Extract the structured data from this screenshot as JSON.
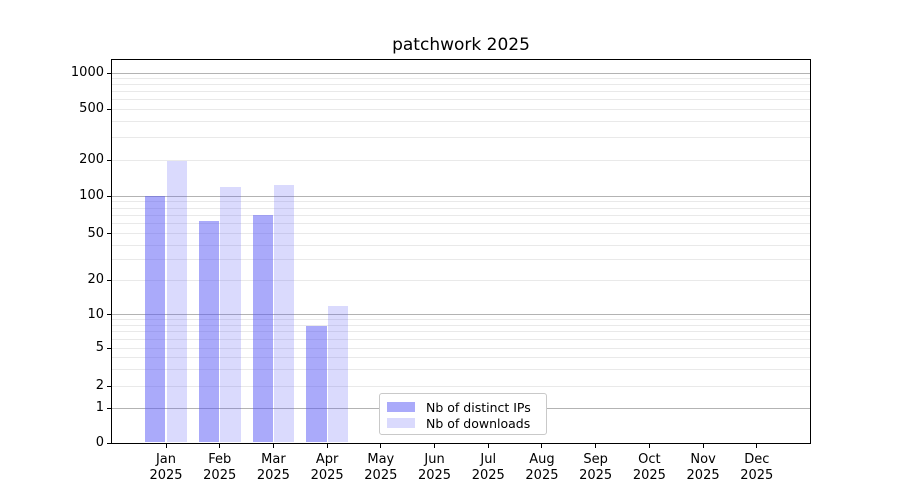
{
  "title": "patchwork 2025",
  "chart_data": {
    "type": "bar",
    "title": "patchwork 2025",
    "categories": [
      "Jan 2025",
      "Feb 2025",
      "Mar 2025",
      "Apr 2025",
      "May 2025",
      "Jun 2025",
      "Jul 2025",
      "Aug 2025",
      "Sep 2025",
      "Oct 2025",
      "Nov 2025",
      "Dec 2025"
    ],
    "series": [
      {
        "name": "Nb of distinct IPs",
        "color": "#5555f5",
        "fill_alpha": 0.5,
        "values": [
          100,
          63,
          71,
          8,
          null,
          null,
          null,
          null,
          null,
          null,
          null,
          null
        ]
      },
      {
        "name": "Nb of downloads",
        "color": "#5555f5",
        "fill_alpha": 0.22,
        "values": [
          195,
          120,
          124,
          12,
          null,
          null,
          null,
          null,
          null,
          null,
          null,
          null
        ]
      }
    ],
    "xlabel": "",
    "ylabel": "",
    "yscale": "log-like (0 baseline, ticks 1-2-5 pattern)",
    "yticks": [
      0,
      1,
      2,
      5,
      10,
      20,
      50,
      100,
      200,
      500,
      1000
    ],
    "ylim": [
      0,
      1300
    ],
    "grid": "horizontal: faint minor lines, gray major lines at 1, 10, 100, 1000",
    "legend": {
      "position": "lower center",
      "labels": [
        "Nb of distinct IPs",
        "Nb of downloads"
      ]
    },
    "colors": {
      "axis": "#000000",
      "grid_major": "#b3b3b3",
      "grid_minor": "#e9e9e9",
      "background": "#ffffff",
      "bar_distinct_ips_effective": "#aaaafa",
      "bar_downloads_effective": "#d9d9fc"
    }
  }
}
